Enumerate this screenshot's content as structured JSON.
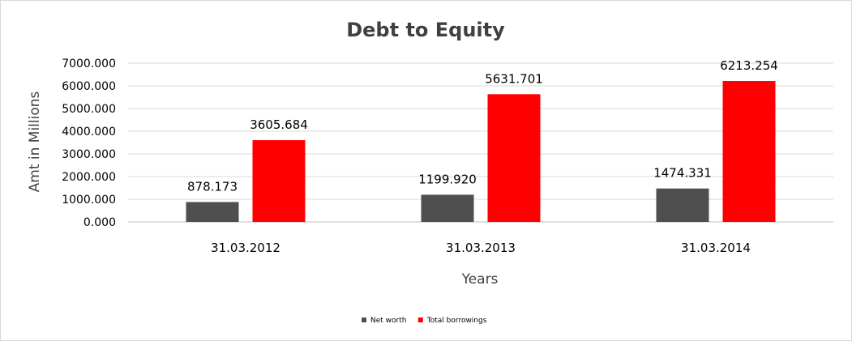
{
  "chart_data": {
    "type": "bar",
    "title": "Debt to Equity",
    "xlabel": "Years",
    "ylabel": "Amt in Millions",
    "categories": [
      "31.03.2012",
      "31.03.2013",
      "31.03.2014"
    ],
    "series": [
      {
        "name": "Net worth",
        "color": "#4f4f4f",
        "values": [
          878.173,
          1199.92,
          1474.331
        ],
        "labels": [
          "878.173",
          "1199.920",
          "1474.331"
        ]
      },
      {
        "name": "Total borrowings",
        "color": "#ff0000",
        "values": [
          3605.684,
          5631.701,
          6213.254
        ],
        "labels": [
          "3605.684",
          "5631.701",
          "6213.254"
        ]
      }
    ],
    "ylim": [
      0,
      7000
    ],
    "yticks": [
      "0.000",
      "1000.000",
      "2000.000",
      "3000.000",
      "4000.000",
      "5000.000",
      "6000.000",
      "7000.000"
    ],
    "grid": true,
    "legend_position": "bottom"
  }
}
